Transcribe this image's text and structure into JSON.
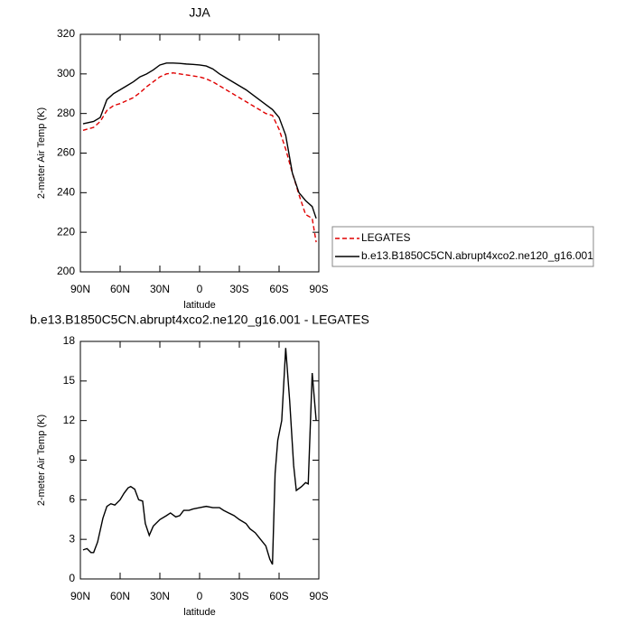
{
  "chart_data": [
    {
      "type": "line",
      "title": "JJA",
      "xlabel": "latitude",
      "ylabel": "2-meter Air Temp (K)",
      "x": [
        88,
        80,
        75,
        70,
        65,
        60,
        55,
        50,
        45,
        40,
        35,
        30,
        25,
        20,
        15,
        10,
        5,
        0,
        -5,
        -10,
        -15,
        -20,
        -25,
        -30,
        -35,
        -40,
        -45,
        -50,
        -55,
        -60,
        -65,
        -70,
        -75,
        -80,
        -85,
        -88
      ],
      "series": [
        {
          "name": "LEGATES",
          "color": "#e00000",
          "style": "dashed",
          "values": [
            271.5,
            273,
            276,
            281.5,
            284,
            285,
            286.5,
            288,
            290.5,
            293.5,
            296,
            298.5,
            300,
            300.5,
            300,
            299.5,
            299,
            298.5,
            297.5,
            296,
            294,
            292,
            290,
            288,
            286,
            284,
            282,
            280,
            279,
            272,
            262,
            250,
            239,
            229,
            227,
            215
          ]
        },
        {
          "name": "b.e13.B1850C5CN.abrupt4xco2.ne120_g16.001",
          "color": "#000000",
          "style": "solid",
          "values": [
            274.8,
            276,
            278,
            287,
            290,
            292,
            294,
            296,
            298.5,
            300,
            302,
            304.5,
            305.5,
            305.5,
            305.3,
            305,
            304.8,
            304.5,
            304,
            302.5,
            300,
            298,
            296,
            294,
            292,
            289.5,
            287,
            284.5,
            282,
            278,
            269,
            250,
            240,
            236,
            233,
            227
          ]
        }
      ],
      "xlim": [
        90,
        -90
      ],
      "xticks": [
        {
          "value": 90,
          "label": "90N"
        },
        {
          "value": 60,
          "label": "60N"
        },
        {
          "value": 30,
          "label": "30N"
        },
        0,
        {
          "value": -30,
          "label": "30S"
        },
        {
          "value": -60,
          "label": "60S"
        },
        {
          "value": -90,
          "label": "90S"
        }
      ],
      "ylim": [
        200,
        320
      ],
      "yticks": [
        200,
        220,
        240,
        260,
        280,
        300,
        320
      ],
      "grid": false,
      "legend": "right"
    },
    {
      "type": "line",
      "title": "b.e13.B1850C5CN.abrupt4xco2.ne120_g16.001 - LEGATES",
      "xlabel": "latitude",
      "ylabel": "2-meter Air Temp (K)",
      "x": [
        88,
        85,
        82,
        80,
        77,
        73,
        70,
        67,
        64,
        60,
        57,
        54,
        52,
        49,
        46,
        43,
        41,
        38,
        35,
        30,
        25,
        22,
        18,
        15,
        12,
        8,
        5,
        0,
        -5,
        -10,
        -15,
        -18,
        -22,
        -26,
        -30,
        -35,
        -38,
        -42,
        -46,
        -50,
        -53,
        -55,
        -57,
        -59,
        -62,
        -65,
        -68,
        -71,
        -73,
        -77,
        -80,
        -82,
        -85,
        -88
      ],
      "series": [
        {
          "color": "#000000",
          "style": "solid",
          "values": [
            2.2,
            2.3,
            2.0,
            2.0,
            2.8,
            4.6,
            5.5,
            5.7,
            5.6,
            6.0,
            6.5,
            6.9,
            7.0,
            6.8,
            6.0,
            5.9,
            4.2,
            3.3,
            4.0,
            4.5,
            4.8,
            5.0,
            4.7,
            4.8,
            5.2,
            5.2,
            5.3,
            5.4,
            5.5,
            5.4,
            5.4,
            5.2,
            5.0,
            4.8,
            4.5,
            4.2,
            3.8,
            3.5,
            3.0,
            2.5,
            1.5,
            1.1,
            8.0,
            10.5,
            12.0,
            17.5,
            13.5,
            8.6,
            6.7,
            7.0,
            7.3,
            7.2,
            15.6,
            12.0
          ]
        }
      ],
      "xlim": [
        90,
        -90
      ],
      "xticks": [
        {
          "value": 90,
          "label": "90N"
        },
        {
          "value": 60,
          "label": "60N"
        },
        {
          "value": 30,
          "label": "30N"
        },
        0,
        {
          "value": -30,
          "label": "30S"
        },
        {
          "value": -60,
          "label": "60S"
        },
        {
          "value": -90,
          "label": "90S"
        }
      ],
      "ylim": [
        0,
        18
      ],
      "yticks": [
        0,
        3,
        6,
        9,
        12,
        15,
        18
      ],
      "grid": false
    }
  ]
}
